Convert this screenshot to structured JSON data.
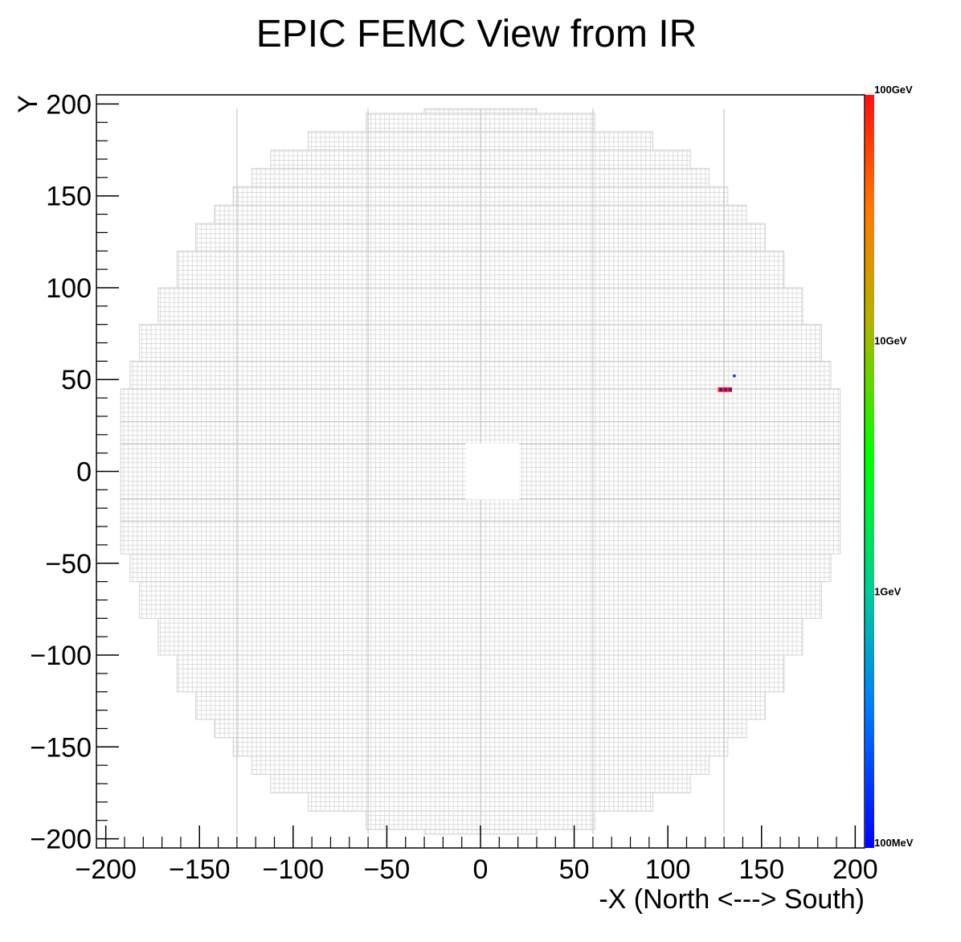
{
  "chart_data": {
    "type": "heatmap",
    "title": "EPIC FEMC View from IR",
    "xlabel": "-X (North <---> South)",
    "ylabel": "Y",
    "xlim": [
      -205,
      205
    ],
    "ylim": [
      -205,
      205
    ],
    "x_ticks": [
      -200,
      -150,
      -100,
      -50,
      0,
      50,
      100,
      150,
      200
    ],
    "y_ticks": [
      -200,
      -150,
      -100,
      -50,
      0,
      50,
      100,
      150,
      200
    ],
    "x_tick_labels": [
      "−200",
      "−150",
      "−100",
      "−50",
      "0",
      "50",
      "100",
      "150",
      "200"
    ],
    "y_tick_labels": [
      "−200",
      "−150",
      "−100",
      "−50",
      "0",
      "50",
      "100",
      "150",
      "200"
    ],
    "colorbar": {
      "scale": "log",
      "labels": [
        "100GeV",
        "10GeV",
        "1GeV",
        "100MeV"
      ],
      "colors": [
        "#0000ff",
        "#0080ff",
        "#00c8a0",
        "#00ff00",
        "#c8b400",
        "#ff8000",
        "#ff0000"
      ]
    },
    "detector": {
      "outline_color": "#d3d3d3",
      "cell_pitch": 2.5,
      "rows": [
        {
          "y": [
            195,
            197.5
          ],
          "x": [
            -30,
            30
          ]
        },
        {
          "y": [
            185,
            195
          ],
          "x": [
            -61,
            61
          ]
        },
        {
          "y": [
            175,
            185
          ],
          "x": [
            -92,
            92
          ]
        },
        {
          "y": [
            165,
            175
          ],
          "x": [
            -112,
            112
          ]
        },
        {
          "y": [
            155,
            165
          ],
          "x": [
            -122,
            122
          ]
        },
        {
          "y": [
            145,
            155
          ],
          "x": [
            -132,
            132
          ]
        },
        {
          "y": [
            135,
            145
          ],
          "x": [
            -142,
            142
          ]
        },
        {
          "y": [
            120,
            135
          ],
          "x": [
            -152,
            152
          ]
        },
        {
          "y": [
            100,
            120
          ],
          "x": [
            -162,
            162
          ]
        },
        {
          "y": [
            80,
            100
          ],
          "x": [
            -172,
            172
          ]
        },
        {
          "y": [
            60,
            80
          ],
          "x": [
            -182,
            182
          ]
        },
        {
          "y": [
            45,
            60
          ],
          "x": [
            -187,
            187
          ]
        },
        {
          "y": [
            15,
            45
          ],
          "x": [
            -192,
            192
          ]
        },
        {
          "y": [
            -15,
            15
          ],
          "x": [
            -192,
            192
          ]
        },
        {
          "y": [
            -45,
            -15
          ],
          "x": [
            -192,
            192
          ]
        },
        {
          "y": [
            -60,
            -45
          ],
          "x": [
            -187,
            187
          ]
        },
        {
          "y": [
            -80,
            -60
          ],
          "x": [
            -182,
            182
          ]
        },
        {
          "y": [
            -100,
            -80
          ],
          "x": [
            -172,
            172
          ]
        },
        {
          "y": [
            -120,
            -100
          ],
          "x": [
            -162,
            162
          ]
        },
        {
          "y": [
            -135,
            -120
          ],
          "x": [
            -152,
            152
          ]
        },
        {
          "y": [
            -145,
            -135
          ],
          "x": [
            -142,
            142
          ]
        },
        {
          "y": [
            -155,
            -145
          ],
          "x": [
            -132,
            132
          ]
        },
        {
          "y": [
            -165,
            -155
          ],
          "x": [
            -122,
            122
          ]
        },
        {
          "y": [
            -175,
            -165
          ],
          "x": [
            -112,
            112
          ]
        },
        {
          "y": [
            -185,
            -175
          ],
          "x": [
            -92,
            92
          ]
        },
        {
          "y": [
            -195,
            -185
          ],
          "x": [
            -61,
            61
          ]
        },
        {
          "y": [
            -197.5,
            -195
          ],
          "x": [
            -30,
            30
          ]
        }
      ],
      "beam_hole": {
        "x": [
          -7.5,
          20.5
        ],
        "y": [
          -15,
          15
        ]
      }
    },
    "hits": [
      {
        "x": 128,
        "y": 44.5,
        "energy_level": "high",
        "color": "#ff1010"
      },
      {
        "x": 130.5,
        "y": 44.5,
        "energy_level": "high",
        "color": "#ff1010"
      },
      {
        "x": 133,
        "y": 44.5,
        "energy_level": "high",
        "color": "#ff1010"
      },
      {
        "x": 128.4,
        "y": 44.5,
        "energy_level": "low",
        "color": "#1e1eb4"
      },
      {
        "x": 130.9,
        "y": 44.5,
        "energy_level": "low",
        "color": "#1e1eb4"
      },
      {
        "x": 133.4,
        "y": 44.5,
        "energy_level": "low",
        "color": "#1e1eb4"
      },
      {
        "x": 135.5,
        "y": 52,
        "energy_level": "low",
        "color": "#0020ff"
      }
    ]
  }
}
